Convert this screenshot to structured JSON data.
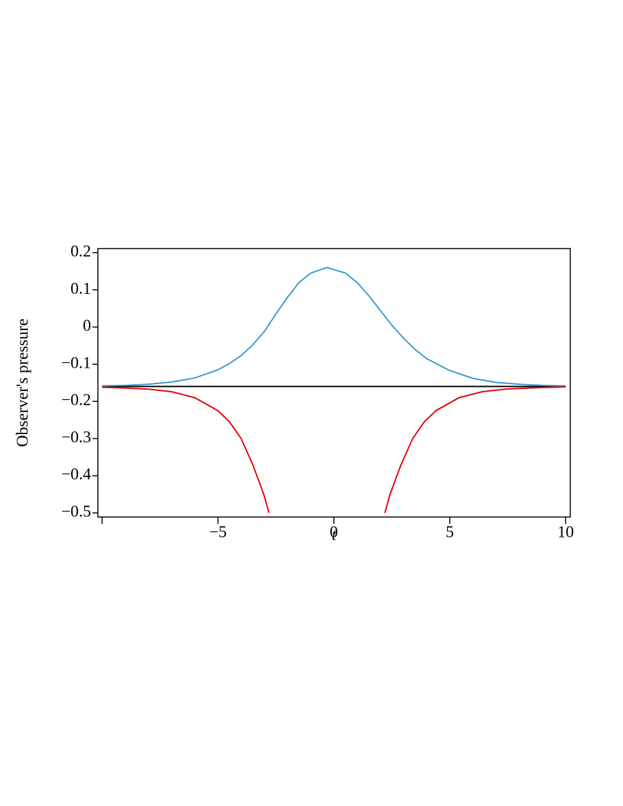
{
  "chart_data": {
    "type": "line",
    "ylabel": "Observer's pressure",
    "xlabel": "t",
    "xlim": [
      -10.18,
      10.2
    ],
    "ylim": [
      -0.511,
      0.211
    ],
    "xticks": [
      {
        "value": -10,
        "label": null
      },
      {
        "value": -5,
        "label": "−5"
      },
      0,
      5,
      10
    ],
    "yticks": [
      {
        "value": 0.2,
        "label": "0.2"
      },
      {
        "value": 0.1,
        "label": "0.1"
      },
      0,
      {
        "value": -0.1,
        "label": "−0.1"
      },
      {
        "value": -0.2,
        "label": "−0.2"
      },
      {
        "value": -0.3,
        "label": "−0.3"
      },
      {
        "value": -0.4,
        "label": "−0.4"
      },
      {
        "value": -0.5,
        "label": "−0.5"
      }
    ],
    "series": [
      {
        "color": "#000000",
        "x": [
          -10,
          10
        ],
        "values": [
          -0.16,
          -0.16
        ]
      },
      {
        "color": "#3a9ad0",
        "x": [
          -10,
          -9,
          -8,
          -7,
          -6,
          -5,
          -4.5,
          -4,
          -3.5,
          -3,
          -2.5,
          -2,
          -1.5,
          -1,
          -0.3,
          0.5,
          1,
          1.5,
          2,
          2.5,
          3,
          3.5,
          4,
          5,
          6,
          7,
          8,
          9,
          10
        ],
        "values": [
          -0.158,
          -0.157,
          -0.154,
          -0.148,
          -0.137,
          -0.115,
          -0.098,
          -0.077,
          -0.048,
          -0.012,
          0.035,
          0.08,
          0.12,
          0.145,
          0.16,
          0.145,
          0.12,
          0.085,
          0.045,
          0.005,
          -0.03,
          -0.06,
          -0.085,
          -0.117,
          -0.138,
          -0.149,
          -0.154,
          -0.157,
          -0.158
        ]
      },
      {
        "color": "#e8000b",
        "x": [
          -10,
          -9,
          -8,
          -7,
          -6,
          -5,
          -4.5,
          -4,
          -3.5,
          -3.2,
          -3,
          -2.8
        ],
        "values": [
          -0.162,
          -0.164,
          -0.167,
          -0.174,
          -0.19,
          -0.225,
          -0.255,
          -0.3,
          -0.37,
          -0.42,
          -0.455,
          -0.5
        ]
      },
      {
        "color": "#e8000b",
        "x": [
          2.2,
          2.4,
          2.6,
          2.9,
          3.4,
          3.9,
          4.4,
          5.4,
          6.4,
          7.4,
          8.4,
          9.4,
          10
        ],
        "values": [
          -0.5,
          -0.455,
          -0.42,
          -0.37,
          -0.3,
          -0.255,
          -0.225,
          -0.19,
          -0.174,
          -0.167,
          -0.164,
          -0.162,
          -0.161
        ]
      }
    ]
  }
}
